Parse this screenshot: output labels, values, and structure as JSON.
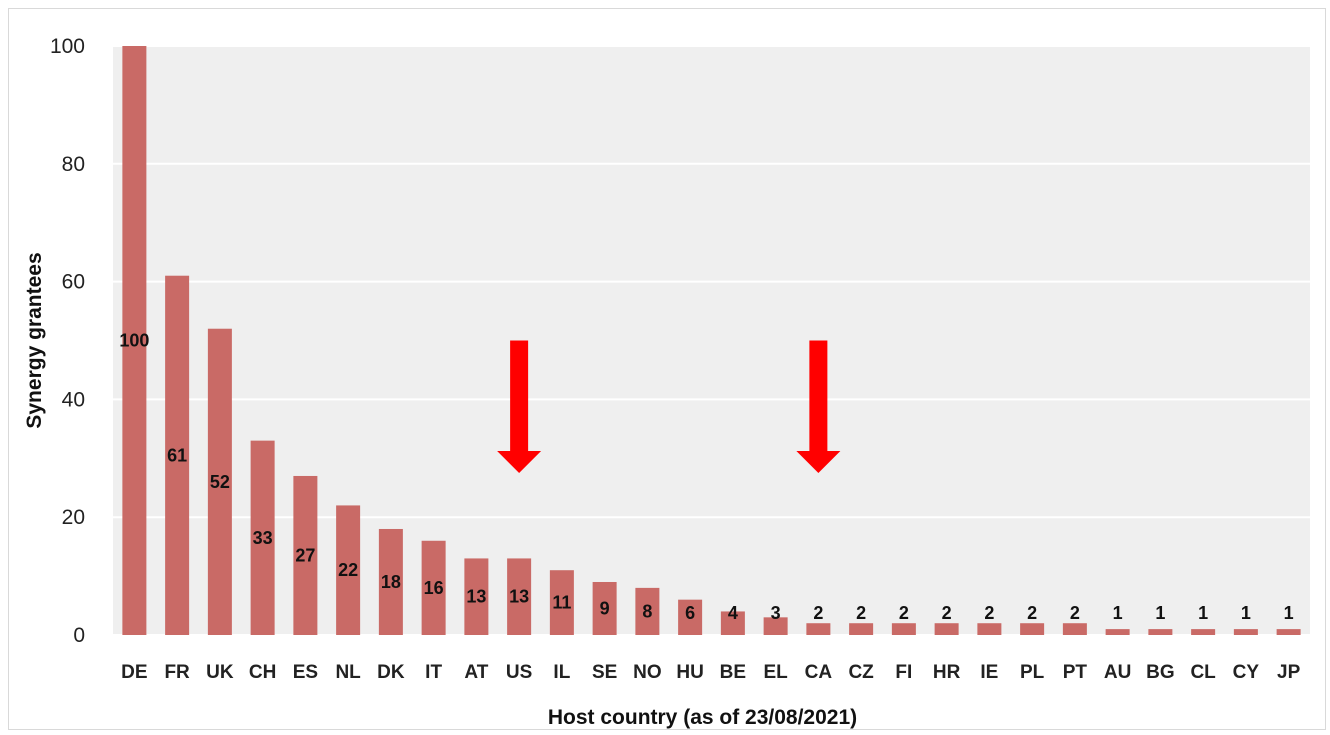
{
  "chart_data": {
    "type": "bar",
    "title": "",
    "xlabel": "Host country (as of 23/08/2021)",
    "ylabel": "Synergy grantees",
    "categories": [
      "DE",
      "FR",
      "UK",
      "CH",
      "ES",
      "NL",
      "DK",
      "IT",
      "AT",
      "US",
      "IL",
      "SE",
      "NO",
      "HU",
      "BE",
      "EL",
      "CA",
      "CZ",
      "FI",
      "HR",
      "IE",
      "PL",
      "PT",
      "AU",
      "BG",
      "CL",
      "CY",
      "JP"
    ],
    "values": [
      100,
      61,
      52,
      33,
      27,
      22,
      18,
      16,
      13,
      13,
      11,
      9,
      8,
      6,
      4,
      3,
      2,
      2,
      2,
      2,
      2,
      2,
      2,
      1,
      1,
      1,
      1,
      1
    ],
    "data_labels": [
      "100",
      "61",
      "52",
      "33",
      "27",
      "22",
      "18",
      "16",
      "13",
      "13",
      "11",
      "9",
      "8",
      "6",
      "4",
      "3",
      "2",
      "2",
      "2",
      "2",
      "2",
      "2",
      "2",
      "1",
      "1",
      "1",
      "1",
      "1"
    ],
    "ylim": [
      0,
      100
    ],
    "yticks": [
      0,
      20,
      40,
      60,
      80,
      100
    ],
    "grid": true,
    "legend": "none",
    "annotations": [
      {
        "type": "arrow-down",
        "category": "US",
        "from_y": 50,
        "to_y": 27.5
      },
      {
        "type": "arrow-down",
        "category": "CA",
        "from_y": 50,
        "to_y": 27.5
      }
    ],
    "colors": {
      "bar": "#c96a66",
      "plot_background": "#efefef",
      "gridline": "#ffffff",
      "arrow": "#ff0000"
    }
  }
}
